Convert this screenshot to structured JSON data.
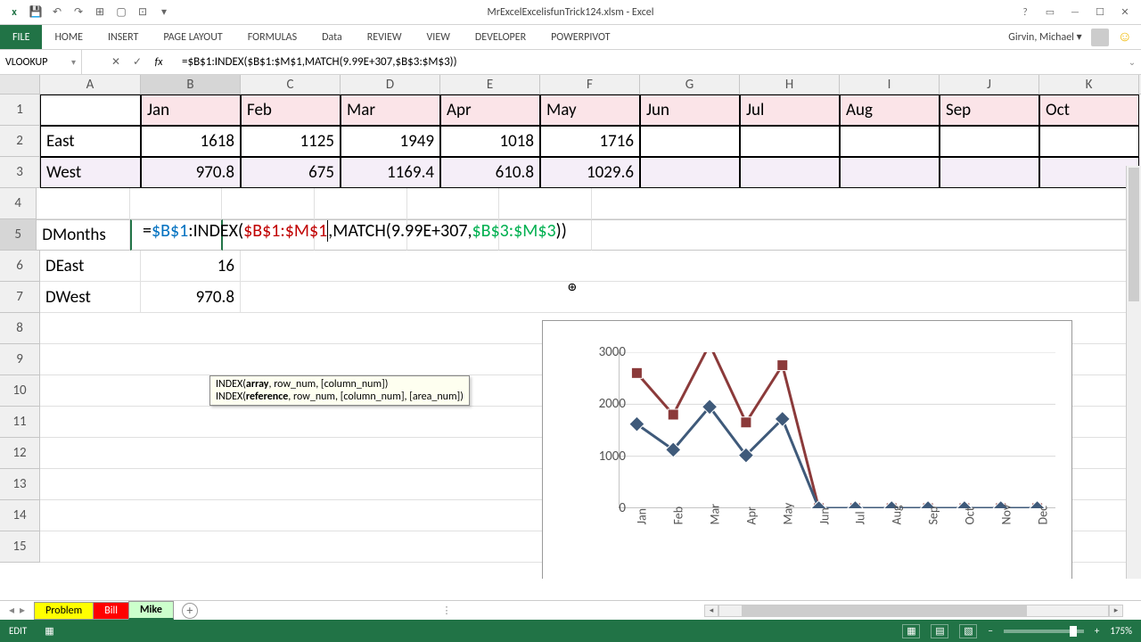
{
  "titlebar": {
    "title": "MrExcelExcelisfunTrick124.xlsm - Excel",
    "help": "?"
  },
  "ribbon": {
    "file": "FILE",
    "tabs": [
      "HOME",
      "INSERT",
      "PAGE LAYOUT",
      "FORMULAS",
      "Data",
      "REVIEW",
      "VIEW",
      "DEVELOPER",
      "POWERPIVOT"
    ],
    "user": "Girvin, Michael ▾"
  },
  "formula_bar": {
    "name_box": "VLOOKUP",
    "formula": "=$B$1:INDEX($B$1:$M$1,MATCH(9.99E+307,$B$3:$M$3))"
  },
  "columns": {
    "widths": [
      113,
      112,
      112,
      112,
      112,
      112,
      112,
      112,
      112,
      112,
      112
    ],
    "letters": [
      "A",
      "B",
      "C",
      "D",
      "E",
      "F",
      "G",
      "H",
      "I",
      "J",
      "K"
    ]
  },
  "rows": {
    "headers": [
      "Jan",
      "Feb",
      "Mar",
      "Apr",
      "May",
      "Jun",
      "Jul",
      "Aug",
      "Sep",
      "Oct"
    ],
    "r2": {
      "label": "East",
      "vals": [
        "1618",
        "1125",
        "1949",
        "1018",
        "1716"
      ]
    },
    "r3": {
      "label": "West",
      "vals": [
        "970.8",
        "675",
        "1169.4",
        "610.8",
        "1029.6"
      ]
    },
    "r5": {
      "label": "DMonths"
    },
    "r6": {
      "label": "DEast",
      "val": "16"
    },
    "r7": {
      "label": "DWest",
      "val": "970.8"
    }
  },
  "formula_edit": {
    "p1": "=",
    "p2": "$B$1",
    "p3": ":INDEX(",
    "p4": "$B$1:$M$1",
    "p5": ",MATCH(9.99E+307,",
    "p6": "$B$3:$M$3",
    "p7": "))"
  },
  "tooltip": {
    "line1a": "INDEX(",
    "line1b": "array",
    "line1c": ", row_num, [column_num])",
    "line2a": "INDEX(",
    "line2b": "reference",
    "line2c": ", row_num, [column_num], [area_num])"
  },
  "chart": {
    "ylabels": [
      "0",
      "1000",
      "2000",
      "3000"
    ],
    "ymax": 3000,
    "xlabels": [
      "Jan",
      "Feb",
      "Mar",
      "Apr",
      "May",
      "Jun",
      "Jul",
      "Aug",
      "Sep",
      "Oct",
      "Nov",
      "Dec"
    ],
    "series1": {
      "color": "#8b3a3a",
      "vals": [
        2600,
        1800,
        3150,
        1650,
        2750,
        0,
        0,
        0,
        0,
        0,
        0,
        0
      ],
      "marker": "square"
    },
    "series2": {
      "color": "#3f5a7a",
      "vals": [
        1618,
        1125,
        1949,
        1018,
        1716,
        0,
        0,
        0,
        0,
        0,
        0,
        0
      ],
      "marker": "diamond"
    },
    "grid_color": "#d9d9d9",
    "bg": "#ffffff"
  },
  "sheets": {
    "problem": "Problem",
    "bill": "Bill",
    "mike": "Mike"
  },
  "status": {
    "mode": "EDIT",
    "zoom": "175%"
  }
}
